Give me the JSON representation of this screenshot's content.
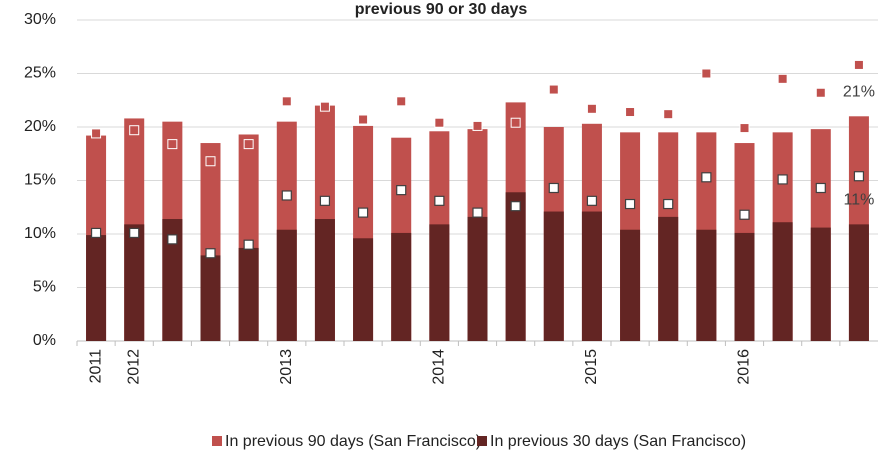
{
  "chart_data": {
    "type": "bar",
    "title": "previous 90 or 30 days",
    "categories": [
      "2011",
      "2012",
      null,
      null,
      null,
      "2013",
      null,
      null,
      null,
      "2014",
      null,
      null,
      null,
      "2015",
      null,
      null,
      null,
      "2016",
      null,
      null,
      null
    ],
    "series": [
      {
        "name": "In previous 90 days (San Francisco)",
        "color": "#c0504d",
        "marker": "bar",
        "values": [
          19.2,
          20.8,
          20.5,
          18.5,
          19.3,
          20.5,
          22.0,
          20.1,
          19.0,
          19.6,
          19.8,
          22.3,
          20.0,
          20.3,
          19.5,
          19.5,
          19.5,
          18.5,
          19.5,
          19.8,
          21.0
        ],
        "value_labels": [
          null,
          null,
          null,
          null,
          null,
          null,
          null,
          null,
          null,
          null,
          null,
          null,
          null,
          null,
          null,
          null,
          null,
          null,
          null,
          null,
          "21%"
        ]
      },
      {
        "name": "In previous 30 days (San Francisco)",
        "color": "#632523",
        "marker": "bar",
        "values": [
          9.9,
          10.9,
          11.4,
          8.0,
          8.7,
          10.4,
          11.4,
          9.6,
          10.1,
          10.9,
          11.6,
          13.9,
          12.1,
          12.1,
          10.4,
          11.6,
          10.4,
          10.1,
          11.1,
          10.6,
          10.9
        ],
        "value_labels": [
          null,
          null,
          null,
          null,
          null,
          null,
          null,
          null,
          null,
          null,
          null,
          null,
          null,
          null,
          null,
          null,
          null,
          null,
          null,
          null,
          "11%"
        ]
      },
      {
        "color": "#c0504d",
        "marker": "square",
        "values": [
          19.4,
          19.7,
          18.4,
          16.8,
          18.4,
          22.4,
          21.9,
          20.7,
          22.4,
          20.4,
          20.1,
          20.4,
          23.5,
          21.7,
          21.4,
          21.2,
          25.0,
          19.9,
          24.5,
          23.2,
          25.8
        ]
      },
      {
        "color": "#ffffff",
        "marker": "hollow-square",
        "values": [
          10.1,
          10.1,
          9.5,
          8.2,
          9.0,
          13.6,
          13.1,
          12.0,
          14.1,
          13.1,
          12.0,
          12.6,
          14.3,
          13.1,
          12.8,
          12.8,
          15.3,
          11.8,
          15.1,
          14.3,
          15.4
        ]
      }
    ],
    "ylim": [
      0,
      30
    ],
    "yticks": [
      {
        "value": 0,
        "label": "0%"
      },
      {
        "value": 5,
        "label": "5%"
      },
      {
        "value": 10,
        "label": "10%"
      },
      {
        "value": 15,
        "label": "15%"
      },
      {
        "value": 20,
        "label": "20%"
      },
      {
        "value": 25,
        "label": "25%"
      },
      {
        "value": 30,
        "label": "30%"
      }
    ],
    "grid": true,
    "legend": "bottom"
  }
}
